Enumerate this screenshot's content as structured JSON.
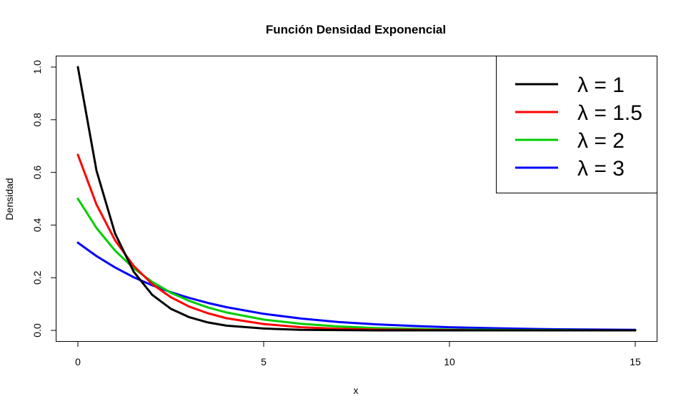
{
  "chart_data": {
    "type": "line",
    "title": "Función Densidad Exponencial",
    "xlabel": "x",
    "ylabel": "Densidad",
    "xlim": [
      0,
      15
    ],
    "ylim": [
      0,
      1
    ],
    "x_ticks": [
      0,
      5,
      10,
      15
    ],
    "x_tick_labels": [
      "0",
      "5",
      "10",
      "15"
    ],
    "y_ticks": [
      0,
      0.2,
      0.4,
      0.6,
      0.8,
      1.0
    ],
    "y_tick_labels": [
      "0.0",
      "0.2",
      "0.4",
      "0.6",
      "0.8",
      "1.0"
    ],
    "grid": false,
    "legend_position": "top-right",
    "series": [
      {
        "name": "λ = 1",
        "color": "#000000",
        "x": [
          0,
          0.5,
          1,
          1.5,
          2,
          2.5,
          3,
          3.5,
          4,
          5,
          6,
          7,
          8,
          9,
          10,
          11,
          12,
          13,
          14,
          15
        ],
        "values": [
          1.0,
          0.607,
          0.368,
          0.223,
          0.135,
          0.082,
          0.05,
          0.03,
          0.018,
          0.007,
          0.002,
          0.001,
          0.0,
          0.0,
          0.0,
          0.0,
          0.0,
          0.0,
          0.0,
          0.0
        ]
      },
      {
        "name": "λ = 1.5",
        "color": "#ff0000",
        "x": [
          0,
          0.5,
          1,
          1.5,
          2,
          2.5,
          3,
          3.5,
          4,
          5,
          6,
          7,
          8,
          9,
          10,
          11,
          12,
          13
        ],
        "values": [
          0.667,
          0.478,
          0.342,
          0.245,
          0.176,
          0.126,
          0.09,
          0.065,
          0.046,
          0.024,
          0.012,
          0.006,
          0.003,
          0.002,
          0.001,
          0.0,
          0.0,
          0.0
        ]
      },
      {
        "name": "λ = 2",
        "color": "#00cd00",
        "x": [
          0,
          0.5,
          1,
          1.5,
          2,
          2.5,
          3,
          3.5,
          4,
          5,
          6,
          7,
          8,
          9,
          10,
          11,
          12,
          13,
          14,
          15
        ],
        "values": [
          0.5,
          0.389,
          0.303,
          0.236,
          0.184,
          0.143,
          0.112,
          0.087,
          0.068,
          0.041,
          0.025,
          0.015,
          0.009,
          0.006,
          0.003,
          0.002,
          0.001,
          0.001,
          0.0,
          0.0
        ]
      },
      {
        "name": "λ = 3",
        "color": "#0000ff",
        "x": [
          0,
          0.5,
          1,
          1.5,
          2,
          2.5,
          3,
          3.5,
          4,
          5,
          6,
          7,
          8,
          9,
          10,
          11,
          12,
          13,
          14,
          15
        ],
        "values": [
          0.333,
          0.282,
          0.239,
          0.202,
          0.171,
          0.145,
          0.123,
          0.104,
          0.088,
          0.063,
          0.045,
          0.032,
          0.023,
          0.017,
          0.012,
          0.009,
          0.006,
          0.004,
          0.003,
          0.002
        ]
      }
    ]
  }
}
